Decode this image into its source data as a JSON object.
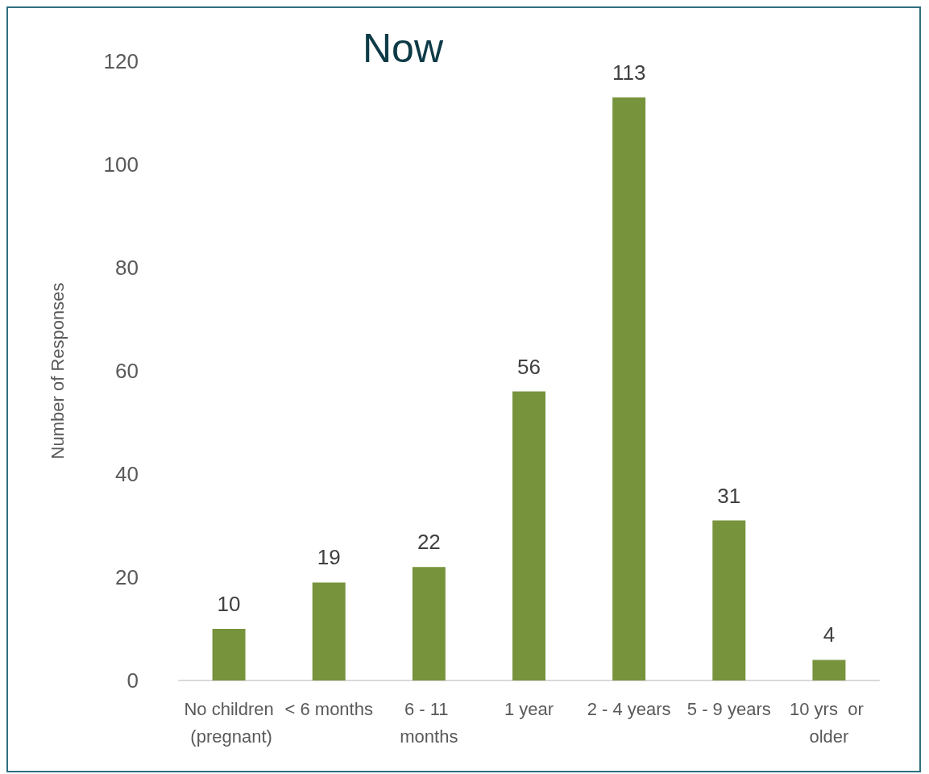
{
  "chart_data": {
    "type": "bar",
    "title": "Now",
    "ylabel": "Number of Responses",
    "categories": [
      "No children (pregnant)",
      "< 6 months",
      "6 - 11 months",
      "1 year",
      "2 - 4 years",
      "5 - 9 years",
      "10 yrs  or older"
    ],
    "values": [
      10,
      19,
      22,
      56,
      113,
      31,
      4
    ],
    "color": "#77933c",
    "ylim": [
      0,
      120
    ],
    "yticks": [
      0,
      20,
      40,
      60,
      80,
      100,
      120
    ],
    "grid": false,
    "data_labels": true
  }
}
